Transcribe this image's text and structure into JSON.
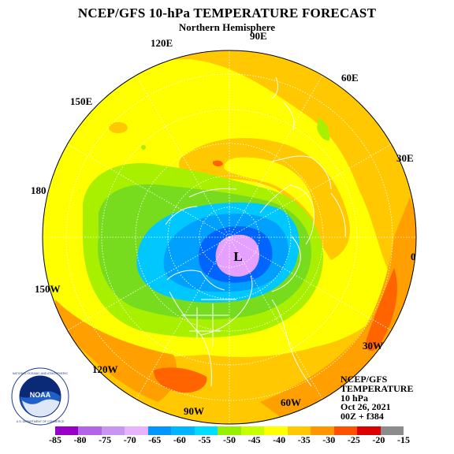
{
  "header": {
    "title": "NCEP/GFS 10-hPa TEMPERATURE FORECAST",
    "subtitle": "Northern Hemisphere"
  },
  "longitude_labels": {
    "lon_90e": "90E",
    "lon_120e": "120E",
    "lon_60e": "60E",
    "lon_150e": "150E",
    "lon_30e": "30E",
    "lon_180": "180",
    "lon_0": "0",
    "lon_150w": "150W",
    "lon_30w": "30W",
    "lon_120w": "120W",
    "lon_60w": "60W",
    "lon_90w": "90W"
  },
  "map": {
    "low_marker": "L",
    "projection": "polar stereographic, north pole",
    "colors": {
      "yellow": "#ffff00",
      "light_orange": "#ffc800",
      "orange": "#ffa000",
      "dark_orange": "#ff6400",
      "yellow_green": "#c8ff00",
      "light_green": "#a8f000",
      "green": "#78dc1e",
      "deep_sky": "#00c8ff",
      "sky_blue": "#00a0ff",
      "blue": "#0064ff",
      "violet": "#e6a0ff"
    }
  },
  "info": {
    "line1": "NCEP/GFS",
    "line2": "TEMPERATURE",
    "line3": "10 hPa",
    "line4": "Oct 26, 2021",
    "line5": "00Z + f384"
  },
  "logo": {
    "text": "NOAA",
    "ring_text": "NATIONAL OCEANIC AND ATMOSPHERIC ADMINISTRATION · U.S. DEPARTMENT OF COMMERCE"
  },
  "colorbar": {
    "labels": [
      "-85",
      "-80",
      "-75",
      "-70",
      "-65",
      "-60",
      "-55",
      "-50",
      "-45",
      "-40",
      "-35",
      "-30",
      "-25",
      "-20",
      "-15"
    ],
    "colors": [
      "#9600c8",
      "#b464e6",
      "#c896f0",
      "#e6b4ff",
      "#0096ff",
      "#00b4ff",
      "#00dcff",
      "#96f000",
      "#c8ff00",
      "#ffff00",
      "#ffc800",
      "#ff9600",
      "#ff5000",
      "#dc0000",
      "#8c8c8c"
    ]
  }
}
